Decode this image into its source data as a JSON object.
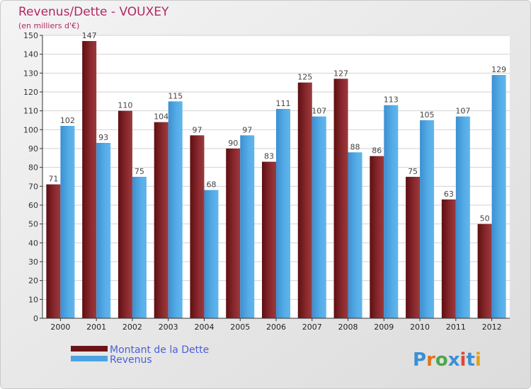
{
  "chart_data": {
    "type": "bar",
    "title": "Revenus/Dette - VOUXEY",
    "subtitle": "(en milliers d'€)",
    "categories": [
      "2000",
      "2001",
      "2002",
      "2003",
      "2004",
      "2005",
      "2006",
      "2007",
      "2008",
      "2009",
      "2010",
      "2011",
      "2012"
    ],
    "series": [
      {
        "name": "Montant de la Dette",
        "color": "#8b2a2e",
        "values": [
          71,
          147,
          110,
          104,
          97,
          90,
          83,
          125,
          127,
          86,
          75,
          63,
          50
        ]
      },
      {
        "name": "Revenus",
        "color": "#4aa3e3",
        "values": [
          102,
          93,
          75,
          115,
          68,
          97,
          111,
          107,
          88,
          113,
          105,
          107,
          129
        ]
      }
    ],
    "ylim": [
      0,
      150
    ],
    "ytick_step": 10,
    "grid": true,
    "legend": "bottom-left"
  },
  "brand": "Proxiti"
}
